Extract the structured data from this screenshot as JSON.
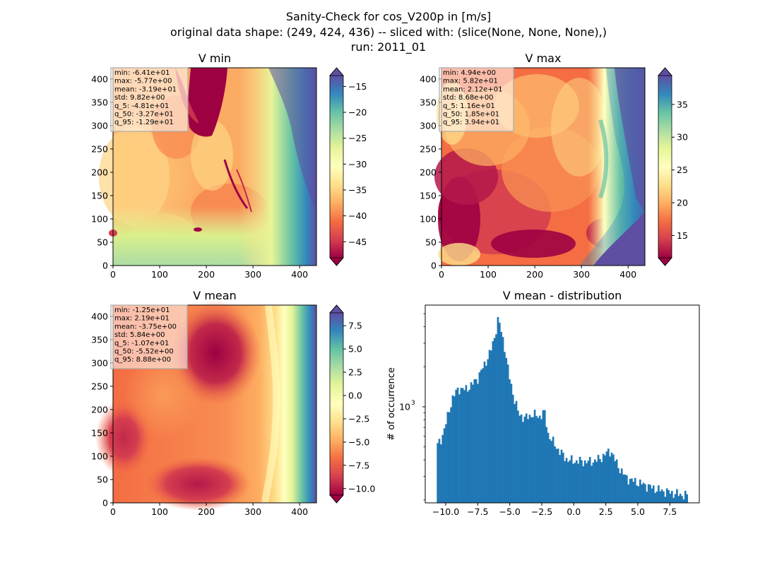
{
  "figure": {
    "title_lines": [
      "Sanity-Check for cos_V200p in [m/s]",
      "original data shape: (249, 424, 436) -- sliced with: (slice(None, None, None),)",
      "run: 2011_01"
    ]
  },
  "chart_data": [
    {
      "type": "heatmap",
      "title": "V min",
      "colormap": "Spectral",
      "x_range": [
        0,
        436
      ],
      "y_range": [
        0,
        424
      ],
      "x_ticks": [
        0,
        100,
        200,
        300,
        400
      ],
      "y_ticks": [
        0,
        50,
        100,
        150,
        200,
        250,
        300,
        350,
        400
      ],
      "colorbar": {
        "range": [
          -48.1,
          -12.9
        ],
        "ticks": [
          -15,
          -20,
          -25,
          -30,
          -35,
          -40,
          -45
        ],
        "extend": "both"
      },
      "stats": [
        "min: -6.41e+01",
        "max: -5.77e+00",
        "mean: -3.19e+01",
        "std: 9.82e+00",
        "q_5: -4.81e+01",
        "q_50: -3.27e+01",
        "q_95: -1.29e+01"
      ]
    },
    {
      "type": "heatmap",
      "title": "V max",
      "colormap": "Spectral",
      "x_range": [
        0,
        436
      ],
      "y_range": [
        0,
        424
      ],
      "x_ticks": [
        0,
        100,
        200,
        300,
        400
      ],
      "y_ticks": [
        0,
        50,
        100,
        150,
        200,
        250,
        300,
        350,
        400
      ],
      "colorbar": {
        "range": [
          11.6,
          39.4
        ],
        "ticks": [
          35,
          30,
          25,
          20,
          15
        ],
        "extend": "both"
      },
      "stats": [
        "min: 4.94e+00",
        "max: 5.82e+01",
        "mean: 2.12e+01",
        "std: 8.68e+00",
        "q_5: 1.16e+01",
        "q_50: 1.85e+01",
        "q_95: 3.94e+01"
      ]
    },
    {
      "type": "heatmap",
      "title": "V mean",
      "colormap": "Spectral",
      "x_range": [
        0,
        436
      ],
      "y_range": [
        0,
        424
      ],
      "x_ticks": [
        0,
        100,
        200,
        300,
        400
      ],
      "y_ticks": [
        0,
        50,
        100,
        150,
        200,
        250,
        300,
        350,
        400
      ],
      "colorbar": {
        "range": [
          -10.7,
          8.88
        ],
        "ticks": [
          7.5,
          5.0,
          2.5,
          0.0,
          -2.5,
          -5.0,
          -7.5,
          -10.0
        ],
        "tick_labels": [
          "7.5",
          "5.0",
          "2.5",
          "0.0",
          "−2.5",
          "−5.0",
          "−7.5",
          "−10.0"
        ],
        "extend": "both"
      },
      "stats": [
        "min: -1.25e+01",
        "max: 2.19e+01",
        "mean: -3.75e+00",
        "std: 5.84e+00",
        "q_5: -1.07e+01",
        "q_50: -5.52e+00",
        "q_95: 8.88e+00"
      ]
    },
    {
      "type": "bar",
      "title": "V mean - distribution",
      "ylabel": "# of occurrence",
      "y_scale": "log",
      "xlim": [
        -11.6,
        9.8
      ],
      "ylim": [
        190,
        5800
      ],
      "x_ticks": [
        -10.0,
        -7.5,
        -5.0,
        -2.5,
        0.0,
        2.5,
        5.0,
        7.5
      ],
      "x_tick_labels": [
        "−10.0",
        "−7.5",
        "−5.0",
        "−2.5",
        "0.0",
        "2.5",
        "5.0",
        "7.5"
      ],
      "y_ticks": [
        1000
      ],
      "y_tick_labels": [
        "10",
        "3"
      ],
      "color": "#1f77b4",
      "bin_range": [
        -10.7,
        8.9
      ],
      "profile": [
        [
          -10.7,
          500
        ],
        [
          -10.3,
          590
        ],
        [
          -10.0,
          740
        ],
        [
          -9.5,
          1150
        ],
        [
          -9.0,
          1380
        ],
        [
          -8.5,
          1340
        ],
        [
          -8.0,
          1450
        ],
        [
          -7.5,
          1650
        ],
        [
          -7.0,
          2050
        ],
        [
          -6.5,
          2600
        ],
        [
          -6.2,
          3300
        ],
        [
          -5.9,
          4600
        ],
        [
          -5.7,
          3800
        ],
        [
          -5.4,
          2800
        ],
        [
          -5.1,
          1800
        ],
        [
          -4.7,
          1200
        ],
        [
          -4.3,
          880
        ],
        [
          -3.8,
          820
        ],
        [
          -3.2,
          880
        ],
        [
          -2.7,
          840
        ],
        [
          -2.3,
          920
        ],
        [
          -2.0,
          620
        ],
        [
          -1.5,
          520
        ],
        [
          -1.0,
          450
        ],
        [
          -0.5,
          400
        ],
        [
          0.0,
          392
        ],
        [
          0.5,
          390
        ],
        [
          1.0,
          386
        ],
        [
          1.5,
          390
        ],
        [
          2.0,
          405
        ],
        [
          2.5,
          445
        ],
        [
          2.9,
          470
        ],
        [
          3.3,
          380
        ],
        [
          4.0,
          300
        ],
        [
          4.5,
          280
        ],
        [
          5.0,
          270
        ],
        [
          5.6,
          258
        ],
        [
          6.2,
          245
        ],
        [
          6.8,
          235
        ],
        [
          7.5,
          228
        ],
        [
          8.2,
          220
        ],
        [
          8.9,
          215
        ]
      ]
    }
  ]
}
